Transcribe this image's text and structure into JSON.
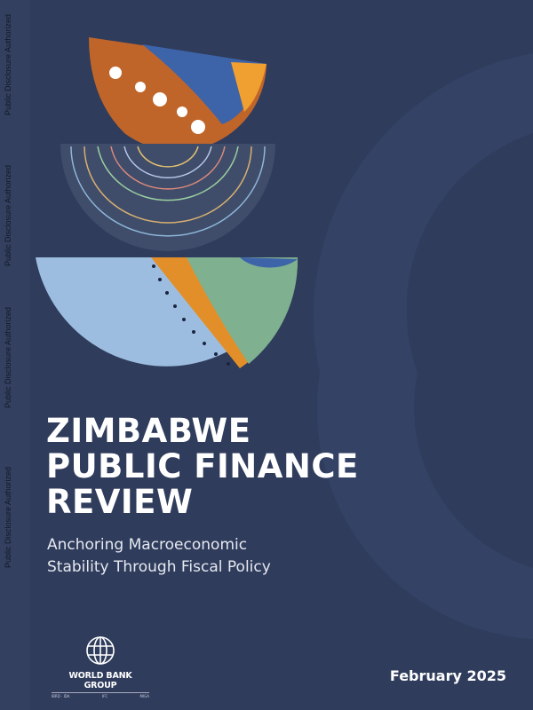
{
  "disclosure_label": "Public Disclosure Authorized",
  "title_lines": [
    "ZIMBABWE",
    "PUBLIC FINANCE",
    "REVIEW"
  ],
  "subtitle_lines": [
    "Anchoring Macroeconomic",
    "Stability Through Fiscal Policy"
  ],
  "logo": {
    "name": "WORLD BANK GROUP",
    "affiliates": [
      "IBRD · IDA",
      "IFC",
      "MIGA"
    ]
  },
  "date": "February 2025",
  "colors": {
    "background": "#2f3c5c",
    "orange": "#c0652a",
    "light_blue": "#9dbde0",
    "green": "#7fb08f"
  }
}
